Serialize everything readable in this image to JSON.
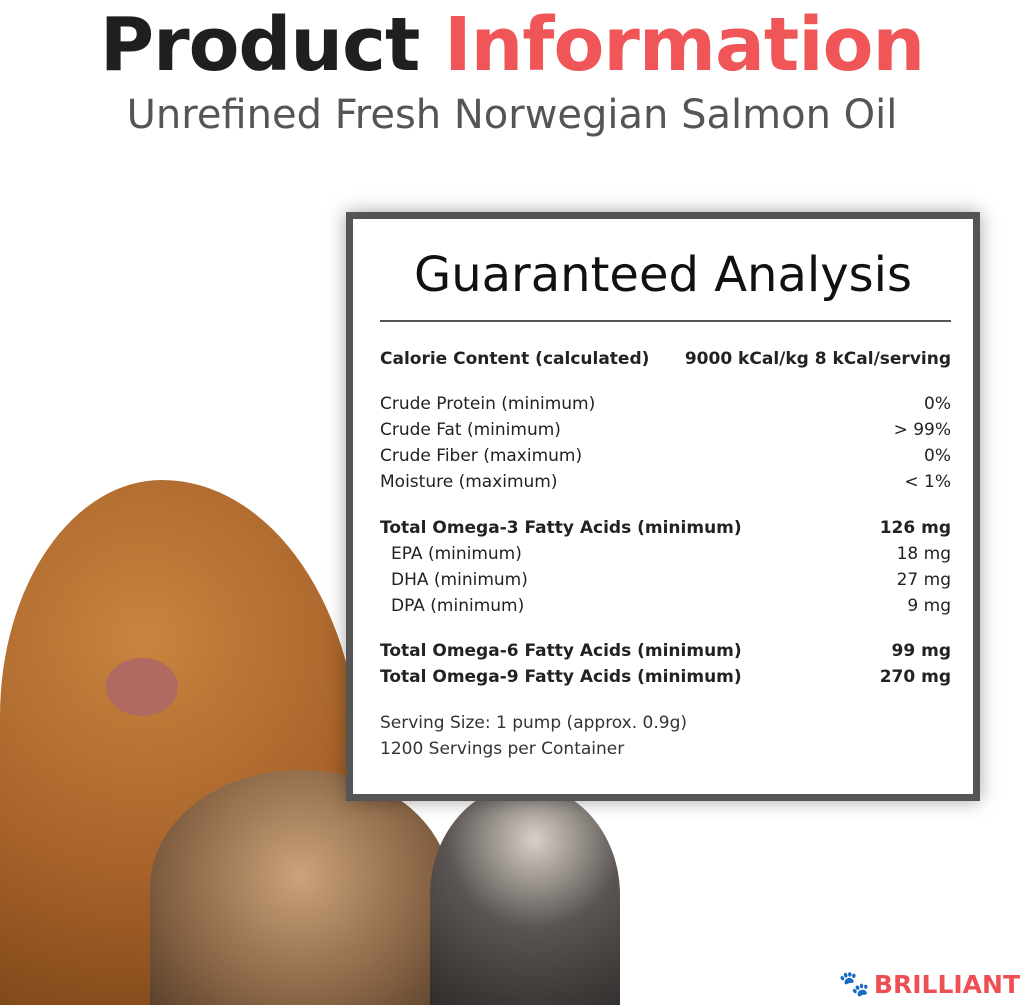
{
  "header": {
    "title_part1": "Product",
    "title_part2": "Information",
    "subtitle": "Unrefined Fresh Norwegian Salmon Oil"
  },
  "panel": {
    "title": "Guaranteed Analysis",
    "calorie": {
      "label": "Calorie Content (calculated)",
      "value": "9000 kCal/kg 8 kCal/serving"
    },
    "basics": [
      {
        "label": "Crude Protein (minimum)",
        "value": "0%"
      },
      {
        "label": "Crude Fat (minimum)",
        "value": "> 99%"
      },
      {
        "label": "Crude Fiber (maximum)",
        "value": "0%"
      },
      {
        "label": "Moisture (maximum)",
        "value": "< 1%"
      }
    ],
    "omega3": {
      "label": "Total Omega-3 Fatty Acids (minimum)",
      "value": "126 mg"
    },
    "omega3_sub": [
      {
        "label": "EPA (minimum)",
        "value": "18 mg"
      },
      {
        "label": "DHA (minimum)",
        "value": "27 mg"
      },
      {
        "label": "DPA (minimum)",
        "value": "9 mg"
      }
    ],
    "omega6": {
      "label": "Total Omega-6 Fatty Acids (minimum)",
      "value": "99 mg"
    },
    "omega9": {
      "label": "Total Omega-9 Fatty Acids (minimum)",
      "value": "270 mg"
    },
    "serving_size": "Serving Size: 1 pump (approx. 0.9g)",
    "servings": "1200 Servings per Container"
  },
  "logo": {
    "text": "BRILLIANT",
    "icon": "paw-icon",
    "color": "#ef4f52"
  },
  "colors": {
    "accent": "#f05558",
    "border": "#555555"
  }
}
